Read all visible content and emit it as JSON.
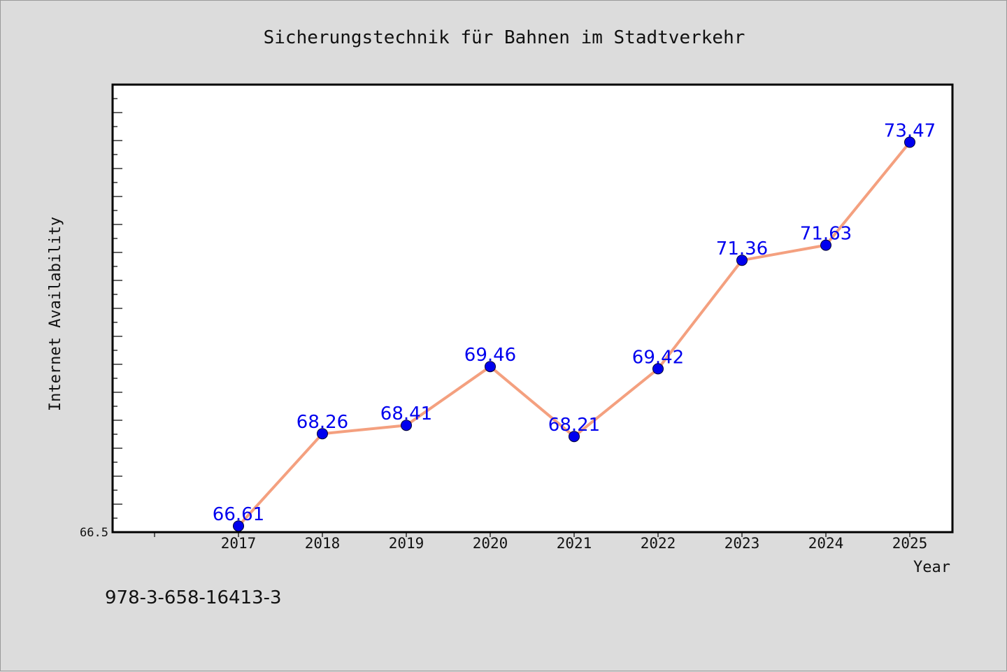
{
  "chart_data": {
    "type": "line",
    "title": "Sicherungstechnik für Bahnen im Stadtverkehr",
    "xlabel": "Year",
    "ylabel": "Internet Availability",
    "x": [
      "2017",
      "2018",
      "2019",
      "2020",
      "2021",
      "2022",
      "2023",
      "2024",
      "2025"
    ],
    "series": [
      {
        "values": [
          66.61,
          68.26,
          68.41,
          69.46,
          68.21,
          69.42,
          71.36,
          71.63,
          73.47
        ]
      }
    ],
    "data_labels": [
      "66.61",
      "68.26",
      "68.41",
      "69.46",
      "68.21",
      "69.42",
      "71.36",
      "71.63",
      "73.47"
    ],
    "ylim": [
      66.5,
      74.5
    ],
    "y_tick_labels": [
      "66.5"
    ],
    "grid": false,
    "legend": "none",
    "colors": {
      "line": "#f4a07f",
      "marker": "#0000ee",
      "label": "#0000ee",
      "plot_bg": "#ffffff",
      "page_bg": "#dcdcdc"
    }
  },
  "footer": {
    "isbn": "978-3-658-16413-3"
  }
}
